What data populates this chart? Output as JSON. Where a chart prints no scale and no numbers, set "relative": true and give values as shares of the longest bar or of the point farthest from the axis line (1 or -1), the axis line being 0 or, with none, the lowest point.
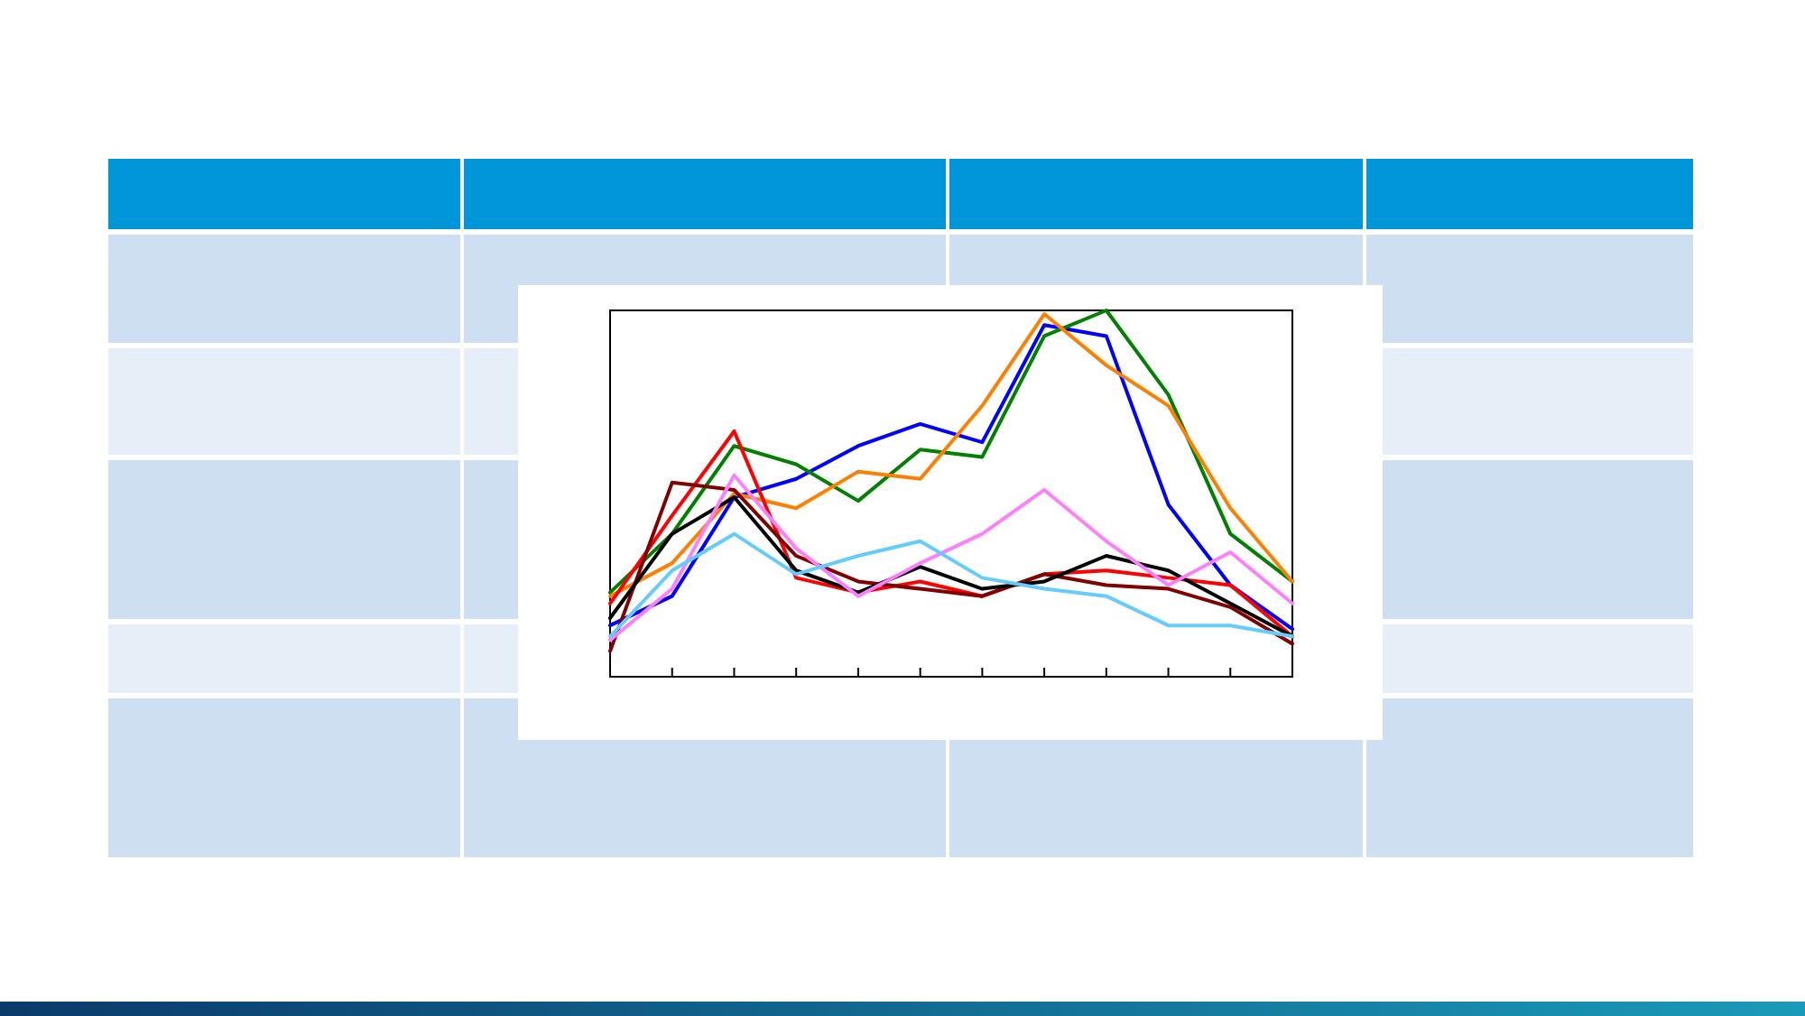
{
  "chart_data": {
    "type": "line",
    "relative": true,
    "categories": [
      null,
      null,
      null,
      null,
      null,
      null,
      null,
      null,
      null,
      null,
      null,
      null
    ],
    "series": [
      {
        "color": "#0000ff",
        "values": [
          0.14,
          0.22,
          0.49,
          0.54,
          0.63,
          0.69,
          0.64,
          0.96,
          0.93,
          0.47,
          0.25,
          0.13
        ]
      },
      {
        "color": "#008000",
        "values": [
          0.23,
          0.39,
          0.63,
          0.58,
          0.48,
          0.62,
          0.6,
          0.93,
          1,
          0.77,
          0.39,
          0.26
        ]
      },
      {
        "color": "#ff8000",
        "values": [
          0.22,
          0.31,
          0.5,
          0.46,
          0.56,
          0.54,
          0.74,
          0.99,
          0.85,
          0.74,
          0.46,
          0.26
        ]
      },
      {
        "color": "#ff0000",
        "values": [
          0.2,
          0.44,
          0.67,
          0.27,
          0.23,
          0.26,
          0.22,
          0.28,
          0.29,
          0.27,
          0.25,
          0.11
        ]
      },
      {
        "color": "#800000",
        "values": [
          0.07,
          0.53,
          0.51,
          0.33,
          0.26,
          0.24,
          0.22,
          0.28,
          0.25,
          0.24,
          0.19,
          0.09
        ]
      },
      {
        "color": "#000000",
        "values": [
          0.16,
          0.39,
          0.49,
          0.29,
          0.23,
          0.3,
          0.24,
          0.26,
          0.33,
          0.29,
          0.2,
          0.11
        ]
      },
      {
        "color": "#ff80ff",
        "values": [
          0.1,
          0.24,
          0.55,
          0.35,
          0.22,
          0.31,
          0.39,
          0.51,
          0.37,
          0.25,
          0.34,
          0.2
        ]
      },
      {
        "color": "#66ccff",
        "values": [
          0.11,
          0.29,
          0.39,
          0.28,
          0.33,
          0.37,
          0.27,
          0.24,
          0.22,
          0.14,
          0.14,
          0.11
        ]
      }
    ]
  }
}
